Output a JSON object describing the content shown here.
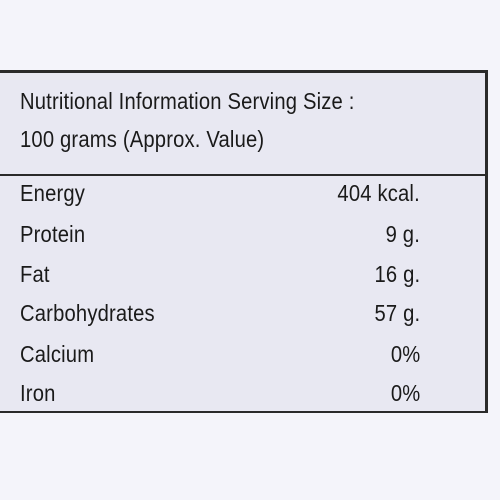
{
  "header": {
    "line1": "Nutritional Information Serving Size :",
    "line2": "100 grams (Approx. Value)"
  },
  "rows": [
    {
      "name": "Energy",
      "value": "404 kcal."
    },
    {
      "name": "Protein",
      "value": "9 g."
    },
    {
      "name": "Fat",
      "value": "16 g."
    },
    {
      "name": "Carbohydrates",
      "value": "57 g."
    },
    {
      "name": "Calcium",
      "value": "0%"
    },
    {
      "name": "Iron",
      "value": "0%"
    }
  ]
}
